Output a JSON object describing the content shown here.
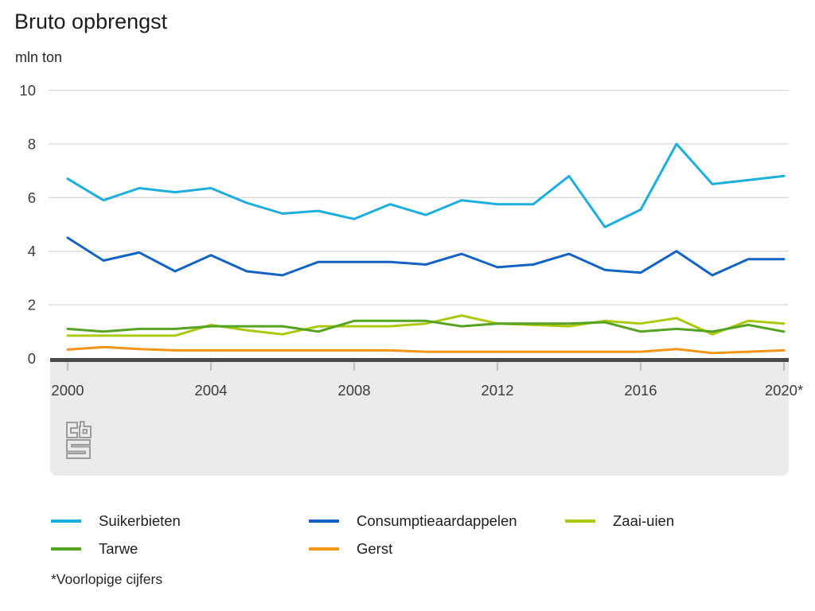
{
  "header": {
    "title": "Bruto opbrengst",
    "unit": "mln ton"
  },
  "footnote": "*Voorlopige cijfers",
  "logo_name": "cbs-logo",
  "colors": {
    "gridline": "#d9d9d9",
    "axis_bar": "#4a4a4a",
    "band": "#ebebeb",
    "tick": "#a6a6a6",
    "tick_text": "#3c3c3c",
    "logo": "#9b9b9b"
  },
  "chart_data": {
    "type": "line",
    "title": "Bruto opbrengst",
    "ylabel": "mln ton",
    "xlabel": "",
    "ylim": [
      0,
      10
    ],
    "grid": "horizontal",
    "legend_position": "bottom",
    "x": [
      2000,
      2001,
      2002,
      2003,
      2004,
      2005,
      2006,
      2007,
      2008,
      2009,
      2010,
      2011,
      2012,
      2013,
      2014,
      2015,
      2016,
      2017,
      2018,
      2019,
      2020
    ],
    "x_tick_labels": [
      {
        "year": 2000,
        "label": "2000"
      },
      {
        "year": 2004,
        "label": "2004"
      },
      {
        "year": 2008,
        "label": "2008"
      },
      {
        "year": 2012,
        "label": "2012"
      },
      {
        "year": 2016,
        "label": "2016"
      },
      {
        "year": 2020,
        "label": "2020*"
      }
    ],
    "y_ticks": [
      {
        "value": 0,
        "label": "0"
      },
      {
        "value": 2,
        "label": "2"
      },
      {
        "value": 4,
        "label": "4"
      },
      {
        "value": 6,
        "label": "6"
      },
      {
        "value": 8,
        "label": "8"
      },
      {
        "value": 10,
        "label": "10"
      }
    ],
    "series": [
      {
        "name": "Suikerbieten",
        "color": "#1caedd",
        "values": [
          6.7,
          5.9,
          6.35,
          6.2,
          6.35,
          5.8,
          5.4,
          5.5,
          5.2,
          5.75,
          5.35,
          5.9,
          5.75,
          5.75,
          6.8,
          4.9,
          5.55,
          8.0,
          6.5,
          6.65,
          6.8
        ]
      },
      {
        "name": "Consumptieaardappelen",
        "color": "#1263c4",
        "values": [
          4.5,
          3.65,
          3.95,
          3.25,
          3.85,
          3.25,
          3.1,
          3.6,
          3.6,
          3.6,
          3.5,
          3.9,
          3.4,
          3.5,
          3.9,
          3.3,
          3.2,
          4.0,
          3.1,
          3.7,
          3.7
        ]
      },
      {
        "name": "Zaai-uien",
        "color": "#abc90f",
        "values": [
          0.85,
          0.85,
          0.85,
          0.85,
          1.25,
          1.05,
          0.9,
          1.2,
          1.2,
          1.2,
          1.3,
          1.6,
          1.3,
          1.25,
          1.2,
          1.4,
          1.3,
          1.5,
          0.9,
          1.4,
          1.3
        ]
      },
      {
        "name": "Tarwe",
        "color": "#54a421",
        "values": [
          1.1,
          1.0,
          1.1,
          1.1,
          1.2,
          1.2,
          1.2,
          1.0,
          1.4,
          1.4,
          1.4,
          1.2,
          1.3,
          1.3,
          1.3,
          1.35,
          1.0,
          1.1,
          1.0,
          1.25,
          1.0
        ]
      },
      {
        "name": "Gerst",
        "color": "#f39517",
        "values": [
          0.33,
          0.42,
          0.35,
          0.3,
          0.3,
          0.3,
          0.3,
          0.3,
          0.3,
          0.3,
          0.25,
          0.25,
          0.25,
          0.25,
          0.25,
          0.25,
          0.25,
          0.35,
          0.2,
          0.25,
          0.3
        ]
      }
    ]
  }
}
